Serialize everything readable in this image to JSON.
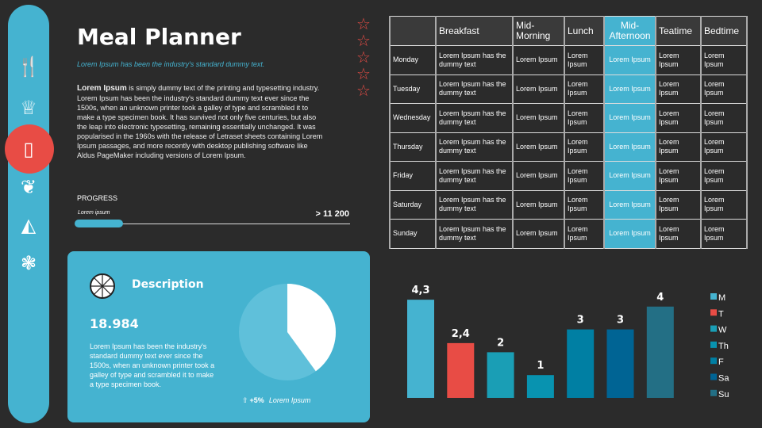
{
  "sidebar": {
    "items": [
      {
        "icon": "utensils-icon"
      },
      {
        "icon": "chef-hat-icon"
      },
      {
        "icon": "menu-dish-icon",
        "active": true
      },
      {
        "icon": "leaf-icon"
      },
      {
        "icon": "cake-icon"
      },
      {
        "icon": "hops-icon"
      }
    ],
    "accent": "#45b3d0",
    "active_color": "#e84c45"
  },
  "header": {
    "title": "Meal Planner",
    "subtitle": "Lorem Ipsum has been the industry's standard dummy text.",
    "body_bold": "Lorem Ipsum",
    "body": " is simply dummy text of the printing and typesetting industry. Lorem Ipsum has been the industry's standard dummy text ever since the 1500s, when an unknown printer took a galley of type and scrambled it to make a type specimen book. It has survived not only five centuries, but also the leap into electronic typesetting, remaining essentially unchanged. It was popularised in the 1960s with the release of Letraset sheets containing Lorem Ipsum passages, and more recently with desktop publishing software like Aldus PageMaker including versions of Lorem Ipsum."
  },
  "progress": {
    "label": "PROGRESS",
    "sublabel": "Lorem ipsum",
    "value_text": "> 11 200",
    "fraction": 0.17
  },
  "rating": {
    "stars": 5,
    "filled": 0
  },
  "card": {
    "title": "Description",
    "number": "18.984",
    "text": "Lorem Ipsum has been the industry's standard dummy text ever since the 1500s, when an unknown printer took a galley of type and scrambled it to make a type specimen book.",
    "change": "+5%",
    "change_label": "Lorem Ipsum",
    "pie_fraction": 0.4
  },
  "table": {
    "headers": [
      "",
      "Breakfast",
      "Mid-Morning",
      "Lunch",
      "Mid-Afternoon",
      "Teatime",
      "Bedtime"
    ],
    "rows": [
      [
        "Monday",
        "Lorem Ipsum has the dummy text",
        "Lorem Ipsum",
        "Lorem Ipsum",
        "Lorem Ipsum",
        "Lorem Ipsum",
        "Lorem Ipsum"
      ],
      [
        "Tuesday",
        "Lorem Ipsum has the dummy text",
        "Lorem Ipsum",
        "Lorem Ipsum",
        "Lorem Ipsum",
        "Lorem Ipsum",
        "Lorem Ipsum"
      ],
      [
        "Wednesday",
        "Lorem Ipsum has the dummy text",
        "Lorem Ipsum",
        "Lorem Ipsum",
        "Lorem Ipsum",
        "Lorem Ipsum",
        "Lorem Ipsum"
      ],
      [
        "Thursday",
        "Lorem Ipsum has the dummy text",
        "Lorem Ipsum",
        "Lorem Ipsum",
        "Lorem Ipsum",
        "Lorem Ipsum",
        "Lorem Ipsum"
      ],
      [
        "Friday",
        "Lorem Ipsum has the dummy text",
        "Lorem Ipsum",
        "Lorem Ipsum",
        "Lorem Ipsum",
        "Lorem Ipsum",
        "Lorem Ipsum"
      ],
      [
        "Saturday",
        "Lorem Ipsum has the dummy text",
        "Lorem Ipsum",
        "Lorem Ipsum",
        "Lorem Ipsum",
        "Lorem Ipsum",
        "Lorem Ipsum"
      ],
      [
        "Sunday",
        "Lorem Ipsum has the dummy text",
        "Lorem Ipsum",
        "Lorem Ipsum",
        "Lorem Ipsum",
        "Lorem Ipsum",
        "Lorem Ipsum"
      ]
    ]
  },
  "chart_data": {
    "type": "bar",
    "categories": [
      "M",
      "T",
      "W",
      "Th",
      "F",
      "Sa",
      "Su"
    ],
    "values": [
      4.3,
      2.4,
      2,
      1,
      3,
      3,
      4
    ],
    "labels": [
      "4,3",
      "2,4",
      "2",
      "1",
      "3",
      "3",
      "4"
    ],
    "colors": [
      "#45b3d0",
      "#e84c45",
      "#1a9eb5",
      "#0893b0",
      "#007fa3",
      "#006494",
      "#236f85"
    ],
    "legend": "right",
    "grid": false
  }
}
